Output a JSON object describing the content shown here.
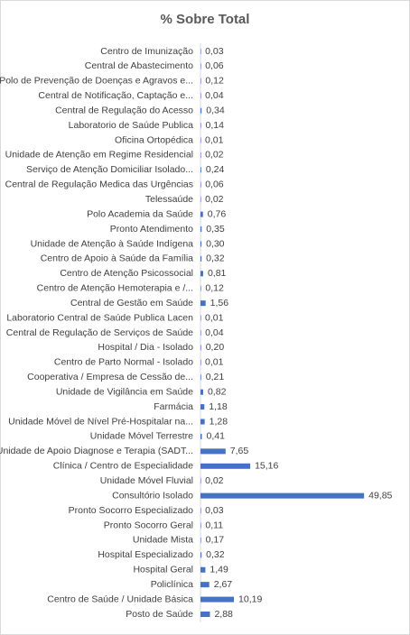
{
  "chart_data": {
    "type": "hbar",
    "title": "% Sobre Total",
    "categories": [
      "Centro de Imunização",
      "Central de Abastecimento",
      "Polo de Prevenção de Doenças e Agravos e...",
      "Central de Notificação, Captação e...",
      "Central de Regulação do Acesso",
      "Laboratorio de Saúde Publica",
      "Oficina Ortopédica",
      "Unidade de Atenção em Regime Residencial",
      "Serviço de Atenção Domiciliar Isolado...",
      "Central de Regulação Medica das Urgências",
      "Telessaúde",
      "Polo Academia da Saúde",
      "Pronto Atendimento",
      "Unidade de Atenção à Saúde Indígena",
      "Centro de Apoio à Saúde da Família",
      "Centro de Atenção Psicossocial",
      "Centro de Atenção Hemoterapia e /...",
      "Central de Gestão em Saúde",
      "Laboratorio Central de Saúde Publica Lacen",
      "Central de Regulação de Serviços de Saúde",
      "Hospital / Dia - Isolado",
      "Centro de Parto Normal - Isolado",
      "Cooperativa / Empresa de Cessão de...",
      "Unidade de Vigilância em Saúde",
      "Farmácia",
      "Unidade Móvel de Nível Pré-Hospitalar na...",
      "Unidade Móvel Terrestre",
      "Unidade de Apoio Diagnose e Terapia (SADT...",
      "Clínica / Centro de Especialidade",
      "Unidade Móvel Fluvial",
      "Consultório Isolado",
      "Pronto Socorro Especializado",
      "Pronto Socorro Geral",
      "Unidade Mista",
      "Hospital Especializado",
      "Hospital Geral",
      "Policlínica",
      "Centro de Saúde / Unidade Básica",
      "Posto de Saúde"
    ],
    "values": [
      0.03,
      0.06,
      0.12,
      0.04,
      0.34,
      0.14,
      0.01,
      0.02,
      0.24,
      0.06,
      0.02,
      0.76,
      0.35,
      0.3,
      0.32,
      0.81,
      0.12,
      1.56,
      0.01,
      0.04,
      0.2,
      0.01,
      0.21,
      0.82,
      1.18,
      1.28,
      0.41,
      7.65,
      15.16,
      0.02,
      49.85,
      0.03,
      0.11,
      0.17,
      0.32,
      1.49,
      2.67,
      10.19,
      2.88
    ],
    "value_labels": [
      "0,03",
      "0,06",
      "0,12",
      "0,04",
      "0,34",
      "0,14",
      "0,01",
      "0,02",
      "0,24",
      "0,06",
      "0,02",
      "0,76",
      "0,35",
      "0,30",
      "0,32",
      "0,81",
      "0,12",
      "1,56",
      "0,01",
      "0,04",
      "0,20",
      "0,01",
      "0,21",
      "0,82",
      "1,18",
      "1,28",
      "0,41",
      "7,65",
      "15,16",
      "0,02",
      "49,85",
      "0,03",
      "0,11",
      "0,17",
      "0,32",
      "1,49",
      "2,67",
      "10,19",
      "2,88"
    ],
    "color": "#4472c4",
    "xlim": [
      0,
      60
    ]
  }
}
